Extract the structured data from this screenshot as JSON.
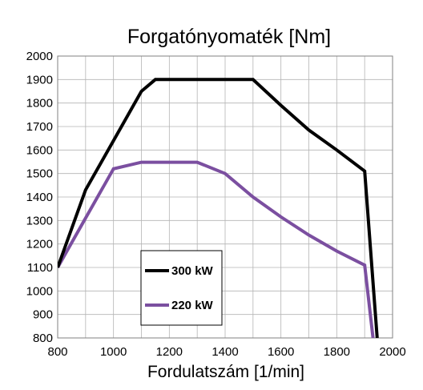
{
  "chart_data": {
    "type": "line",
    "title": "Forgatónyomaték [Nm]",
    "xlabel": "Fordulatszám [1/min]",
    "ylabel": "",
    "xlim": [
      800,
      2000
    ],
    "ylim": [
      800,
      2000
    ],
    "x_ticks": [
      800,
      1000,
      1200,
      1400,
      1600,
      1800,
      2000
    ],
    "y_ticks": [
      800,
      900,
      1000,
      1100,
      1200,
      1300,
      1400,
      1500,
      1600,
      1700,
      1800,
      1900,
      2000
    ],
    "grid": true,
    "legend_position": "bottom-left",
    "series": [
      {
        "name": "300 kW",
        "color": "#000000",
        "points": [
          [
            800,
            1100
          ],
          [
            900,
            1430
          ],
          [
            1000,
            1640
          ],
          [
            1100,
            1850
          ],
          [
            1150,
            1900
          ],
          [
            1500,
            1900
          ],
          [
            1600,
            1790
          ],
          [
            1700,
            1685
          ],
          [
            1800,
            1600
          ],
          [
            1900,
            1510
          ],
          [
            1945,
            800
          ]
        ]
      },
      {
        "name": "220 kW",
        "color": "#7b4fa0",
        "points": [
          [
            800,
            1100
          ],
          [
            900,
            1310
          ],
          [
            1000,
            1520
          ],
          [
            1100,
            1548
          ],
          [
            1300,
            1548
          ],
          [
            1400,
            1500
          ],
          [
            1500,
            1400
          ],
          [
            1600,
            1315
          ],
          [
            1700,
            1238
          ],
          [
            1800,
            1170
          ],
          [
            1900,
            1110
          ],
          [
            1930,
            800
          ]
        ]
      }
    ]
  }
}
